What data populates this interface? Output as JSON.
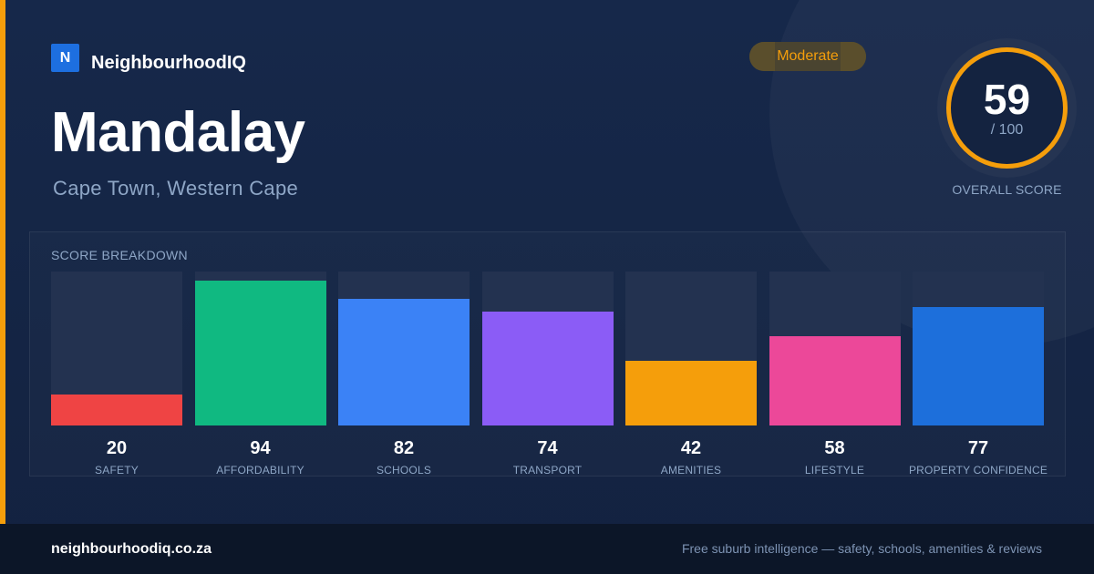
{
  "brand": {
    "logo_letter": "N",
    "name": "NeighbourhoodIQ"
  },
  "suburb": {
    "name": "Mandalay",
    "location": "Cape Town, Western Cape"
  },
  "rating_badge": "Moderate",
  "overall": {
    "score": "59",
    "max": "/ 100",
    "label": "OVERALL SCORE"
  },
  "breakdown": {
    "title": "SCORE BREAKDOWN",
    "items": [
      {
        "label": "SAFETY",
        "value": 20,
        "color": "#ef4444"
      },
      {
        "label": "AFFORDABILITY",
        "value": 94,
        "color": "#10b981"
      },
      {
        "label": "SCHOOLS",
        "value": 82,
        "color": "#3b82f6"
      },
      {
        "label": "TRANSPORT",
        "value": 74,
        "color": "#8b5cf6"
      },
      {
        "label": "AMENITIES",
        "value": 42,
        "color": "#f59e0b"
      },
      {
        "label": "LIFESTYLE",
        "value": 58,
        "color": "#ec4899"
      },
      {
        "label": "PROPERTY CONFIDENCE",
        "value": 77,
        "color": "#1d6fdb"
      }
    ]
  },
  "chart_data": {
    "type": "bar",
    "categories": [
      "SAFETY",
      "AFFORDABILITY",
      "SCHOOLS",
      "TRANSPORT",
      "AMENITIES",
      "LIFESTYLE",
      "PROPERTY CONFIDENCE"
    ],
    "values": [
      20,
      94,
      82,
      74,
      42,
      58,
      77
    ],
    "title": "SCORE BREAKDOWN",
    "ylim": [
      0,
      100
    ]
  },
  "footer": {
    "url": "neighbourhoodiq.co.za",
    "tagline": "Free suburb intelligence — safety, schools, amenities & reviews"
  }
}
